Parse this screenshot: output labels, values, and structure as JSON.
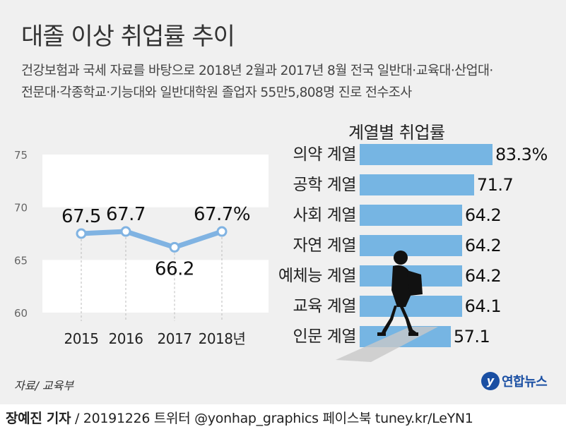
{
  "title": "대졸 이상 취업률 추이",
  "subtitle_line1": "건강보험과 국세 자료를 바탕으로 2018년 2월과 2017년 8월 전국 일반대·교육대·산업대·",
  "subtitle_line2": "전문대·각종학교·기능대와 일반대학원 졸업자 55만5,808명 진로 전수조사",
  "source": "자료/ 교육부",
  "logo_text": "연합뉴스",
  "logo_mark": "y",
  "footer": {
    "reporter": "장예진 기자",
    "rest": " / 20191226 트위터 @yonhap_graphics  페이스북 tuney.kr/LeYN1"
  },
  "colors": {
    "line": "#80b3e2",
    "bar": "#76b5e3",
    "band": "#ffffff",
    "panel": "#f0f0f0"
  },
  "chart_data": [
    {
      "type": "line",
      "x": [
        "2015",
        "2016",
        "2017",
        "2018년"
      ],
      "values": [
        67.5,
        67.7,
        66.2,
        67.7
      ],
      "value_labels": [
        "67.5",
        "67.7",
        "66.2",
        "67.7%"
      ],
      "yticks": [
        "60",
        "65",
        "70",
        "75"
      ],
      "ylim": [
        60,
        75
      ],
      "grid": "alternating bands"
    },
    {
      "type": "bar",
      "title": "계열별 취업률",
      "orientation": "horizontal",
      "categories": [
        "의약 계열",
        "공학 계열",
        "사회 계열",
        "자연 계열",
        "예체능 계열",
        "교육 계열",
        "인문 계열"
      ],
      "values": [
        83.3,
        71.7,
        64.2,
        64.2,
        64.2,
        64.1,
        57.1
      ],
      "value_labels": [
        "83.3%",
        "71.7",
        "64.2",
        "64.2",
        "64.2",
        "64.1",
        "57.1"
      ]
    }
  ]
}
